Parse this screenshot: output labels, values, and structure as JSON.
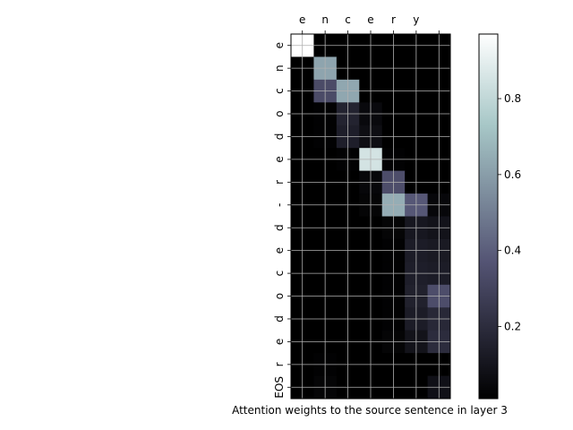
{
  "chart_data": {
    "type": "heatmap",
    "title": "",
    "xlabel": "Attention weights to the source sentence in layer 3",
    "ylabel": "",
    "x_tick_labels": [
      "e",
      "n",
      "c",
      "e",
      "r",
      "y",
      ""
    ],
    "y_tick_labels": [
      "e",
      "n",
      "c",
      "o",
      "d",
      "e",
      "r",
      "-",
      "d",
      "e",
      "c",
      "o",
      "d",
      "e",
      "r",
      "EOS"
    ],
    "colormap": "bone",
    "colorbar": {
      "ticks": [
        0.2,
        0.4,
        0.6,
        0.8
      ],
      "range": [
        0.01,
        0.97
      ]
    },
    "grid": true,
    "x_ticks_position": "top",
    "colorbar_position": "right",
    "values": [
      [
        0.97,
        0.0,
        0.0,
        0.0,
        0.0,
        0.0,
        0.0
      ],
      [
        0.0,
        0.62,
        0.0,
        0.0,
        0.0,
        0.0,
        0.0
      ],
      [
        0.0,
        0.33,
        0.63,
        0.0,
        0.0,
        0.0,
        0.0
      ],
      [
        0.0,
        0.02,
        0.16,
        0.05,
        0.0,
        0.0,
        0.0
      ],
      [
        0.0,
        0.02,
        0.14,
        0.07,
        0.0,
        0.0,
        0.0
      ],
      [
        0.0,
        0.0,
        0.02,
        0.85,
        0.02,
        0.0,
        0.0
      ],
      [
        0.0,
        0.0,
        0.0,
        0.04,
        0.34,
        0.0,
        0.0
      ],
      [
        0.0,
        0.0,
        0.0,
        0.03,
        0.65,
        0.38,
        0.04
      ],
      [
        0.0,
        0.0,
        0.0,
        0.01,
        0.03,
        0.11,
        0.09
      ],
      [
        0.0,
        0.0,
        0.0,
        0.01,
        0.02,
        0.13,
        0.12
      ],
      [
        0.0,
        0.0,
        0.0,
        0.01,
        0.02,
        0.14,
        0.13
      ],
      [
        0.0,
        0.0,
        0.0,
        0.01,
        0.02,
        0.15,
        0.34
      ],
      [
        0.0,
        0.0,
        0.0,
        0.01,
        0.02,
        0.13,
        0.18
      ],
      [
        0.0,
        0.0,
        0.0,
        0.01,
        0.03,
        0.09,
        0.2
      ],
      [
        0.0,
        0.02,
        0.01,
        0.0,
        0.0,
        0.0,
        0.0
      ],
      [
        0.0,
        0.03,
        0.01,
        0.0,
        0.0,
        0.0,
        0.08
      ]
    ]
  }
}
